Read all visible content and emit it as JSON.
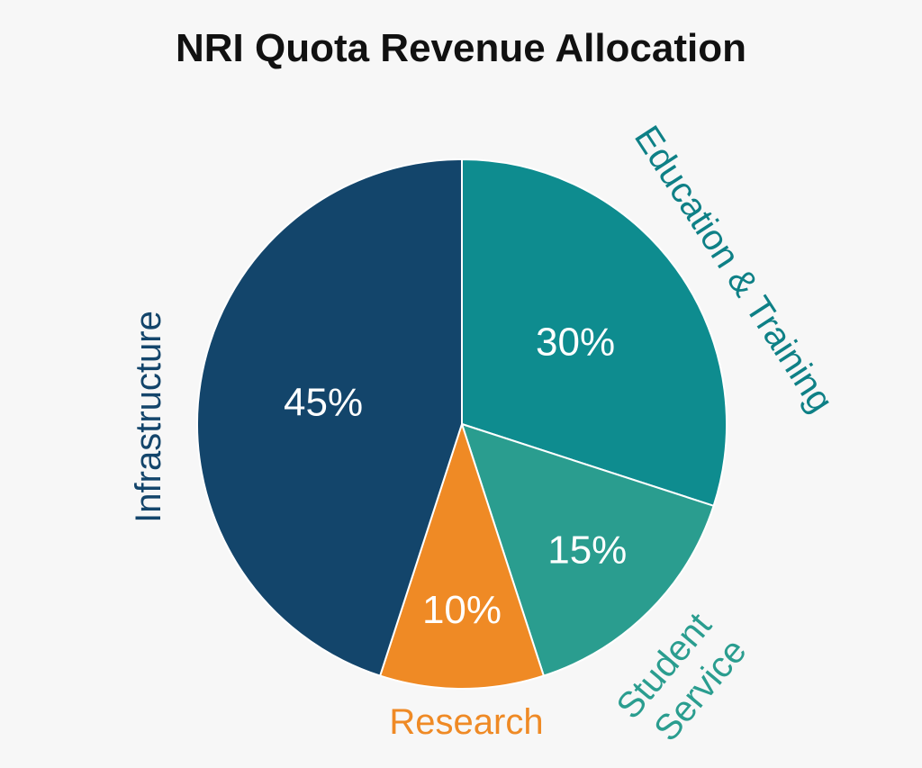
{
  "chart_data": {
    "type": "pie",
    "title": "NRI Quota Revenue Allocation",
    "slices": [
      {
        "label": "Education & Training",
        "value": 30,
        "value_label": "30%",
        "color": "#0e8c8f"
      },
      {
        "label": "Student Service",
        "value": 15,
        "value_label": "15%",
        "color": "#2a9d8f"
      },
      {
        "label": "Research",
        "value": 10,
        "value_label": "10%",
        "color": "#ef8a25"
      },
      {
        "label": "Infrastructure",
        "value": 45,
        "value_label": "45%",
        "color": "#13456b"
      }
    ],
    "category_label_colors": [
      "#0e8086",
      "#2a9d8f",
      "#ef8a25",
      "#13456b"
    ],
    "start_angle_deg": 0,
    "direction": "clockwise",
    "slice_separator_color": "#ffffff"
  }
}
